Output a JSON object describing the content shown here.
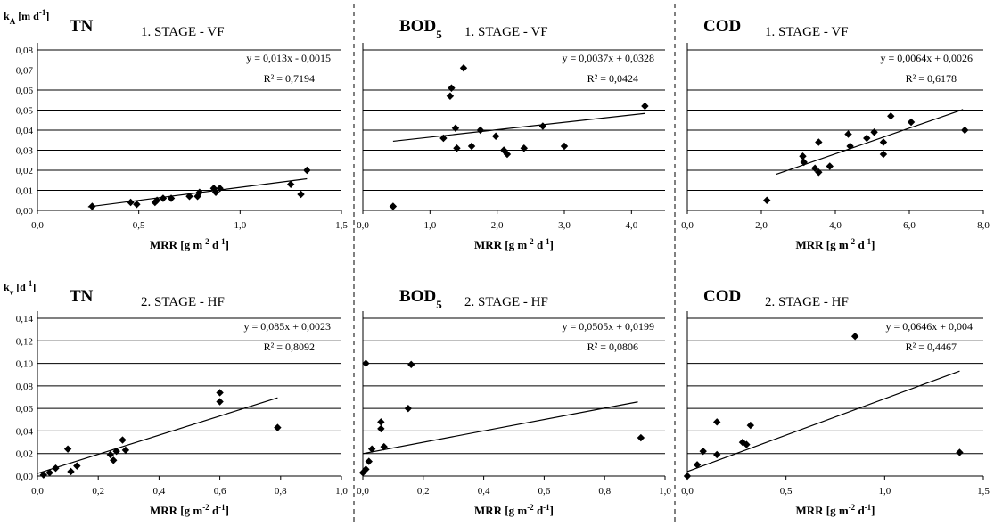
{
  "chart_data": [
    {
      "type": "scatter",
      "param": "TN",
      "param_sub": "",
      "stage": "1. STAGE - VF",
      "ylabel": "k",
      "ylabel_sub": "A",
      "ylabel_unit": " [m d",
      "ylabel_unit_exp": "-1",
      "ylabel_unit_end": "]",
      "xlabel": "MRR [g m",
      "xlabel_exp1": "-2",
      "xlabel_mid": " d",
      "xlabel_exp2": "-1",
      "xlabel_end": "]",
      "xlim": [
        0,
        1.5
      ],
      "ylim": [
        0,
        0.08
      ],
      "xticks": [
        0,
        0.5,
        1,
        1.5
      ],
      "xtick_labels": [
        "0,0",
        "0,5",
        "1,0",
        "1,5"
      ],
      "yticks": [
        0,
        0.01,
        0.02,
        0.03,
        0.04,
        0.05,
        0.06,
        0.07,
        0.08
      ],
      "ytick_labels": [
        "0,00",
        "0,01",
        "0,02",
        "0,03",
        "0,04",
        "0,05",
        "0,06",
        "0,07",
        "0,08"
      ],
      "equation": "y = 0,013x - 0,0015",
      "r2": "R² = 0,7194",
      "trend": {
        "slope": 0.013,
        "intercept": -0.0015,
        "x_from": 0.25,
        "x_to": 1.33
      },
      "points": [
        [
          0.27,
          0.002
        ],
        [
          0.46,
          0.004
        ],
        [
          0.49,
          0.003
        ],
        [
          0.58,
          0.004
        ],
        [
          0.59,
          0.005
        ],
        [
          0.62,
          0.006
        ],
        [
          0.66,
          0.006
        ],
        [
          0.75,
          0.007
        ],
        [
          0.79,
          0.007
        ],
        [
          0.8,
          0.009
        ],
        [
          0.87,
          0.011
        ],
        [
          0.88,
          0.009
        ],
        [
          0.9,
          0.011
        ],
        [
          1.25,
          0.013
        ],
        [
          1.3,
          0.008
        ],
        [
          1.33,
          0.02
        ]
      ]
    },
    {
      "type": "scatter",
      "param": "BOD",
      "param_sub": "5",
      "stage": "1. STAGE - VF",
      "xlabel": "MRR [g m",
      "xlabel_exp1": "-2",
      "xlabel_mid": " d",
      "xlabel_exp2": "-1",
      "xlabel_end": "]",
      "xlim": [
        0,
        4.5
      ],
      "ylim": [
        0,
        0.08
      ],
      "xticks": [
        0,
        1,
        2,
        3,
        4
      ],
      "xtick_labels": [
        "0,0",
        "1,0",
        "2,0",
        "3,0",
        "4,0"
      ],
      "yticks": [
        0,
        0.01,
        0.02,
        0.03,
        0.04,
        0.05,
        0.06,
        0.07,
        0.08
      ],
      "ytick_labels": [],
      "equation": "y = 0,0037x + 0,0328",
      "r2": "R² = 0,0424",
      "trend": {
        "slope": 0.0037,
        "intercept": 0.0328,
        "x_from": 0.45,
        "x_to": 4.2
      },
      "points": [
        [
          0.45,
          0.002
        ],
        [
          1.2,
          0.036
        ],
        [
          1.3,
          0.057
        ],
        [
          1.32,
          0.061
        ],
        [
          1.38,
          0.041
        ],
        [
          1.4,
          0.031
        ],
        [
          1.5,
          0.071
        ],
        [
          1.62,
          0.032
        ],
        [
          1.75,
          0.04
        ],
        [
          1.98,
          0.037
        ],
        [
          2.1,
          0.03
        ],
        [
          2.15,
          0.028
        ],
        [
          2.4,
          0.031
        ],
        [
          2.68,
          0.042
        ],
        [
          3.0,
          0.032
        ],
        [
          4.2,
          0.052
        ]
      ]
    },
    {
      "type": "scatter",
      "param": "COD",
      "param_sub": "",
      "stage": "1. STAGE - VF",
      "xlabel": "MRR [g m",
      "xlabel_exp1": "-2",
      "xlabel_mid": " d",
      "xlabel_exp2": "-1",
      "xlabel_end": "]",
      "xlim": [
        0,
        8
      ],
      "ylim": [
        0,
        0.08
      ],
      "xticks": [
        0,
        2,
        4,
        6,
        8
      ],
      "xtick_labels": [
        "0,0",
        "2,0",
        "4,0",
        "6,0",
        "8,0"
      ],
      "yticks": [
        0,
        0.01,
        0.02,
        0.03,
        0.04,
        0.05,
        0.06,
        0.07,
        0.08
      ],
      "ytick_labels": [],
      "equation": "y = 0,0064x + 0,0026",
      "r2": "R² = 0,6178",
      "trend": {
        "slope": 0.0064,
        "intercept": 0.0026,
        "x_from": 2.4,
        "x_to": 7.45
      },
      "points": [
        [
          2.15,
          0.005
        ],
        [
          3.12,
          0.027
        ],
        [
          3.15,
          0.024
        ],
        [
          3.45,
          0.021
        ],
        [
          3.55,
          0.019
        ],
        [
          3.55,
          0.034
        ],
        [
          3.85,
          0.022
        ],
        [
          4.35,
          0.038
        ],
        [
          4.4,
          0.032
        ],
        [
          4.85,
          0.036
        ],
        [
          5.05,
          0.039
        ],
        [
          5.3,
          0.028
        ],
        [
          5.3,
          0.034
        ],
        [
          5.5,
          0.047
        ],
        [
          6.05,
          0.044
        ],
        [
          7.5,
          0.04
        ]
      ]
    },
    {
      "type": "scatter",
      "param": "TN",
      "param_sub": "",
      "stage": "2. STAGE - HF",
      "ylabel": "k",
      "ylabel_sub": "v",
      "ylabel_unit": " [d",
      "ylabel_unit_exp": "-1",
      "ylabel_unit_end": "]",
      "xlabel": "MRR [g m",
      "xlabel_exp1": "-2",
      "xlabel_mid": " d",
      "xlabel_exp2": "-1",
      "xlabel_end": "]",
      "xlim": [
        0,
        1.0
      ],
      "ylim": [
        0,
        0.14
      ],
      "xticks": [
        0,
        0.2,
        0.4,
        0.6,
        0.8,
        1.0
      ],
      "xtick_labels": [
        "0,0",
        "0,2",
        "0,4",
        "0,6",
        "0,8",
        "1,0"
      ],
      "yticks": [
        0,
        0.02,
        0.04,
        0.06,
        0.08,
        0.1,
        0.12,
        0.14
      ],
      "ytick_labels": [
        "0,00",
        "0,02",
        "0,04",
        "0,06",
        "0,08",
        "0,10",
        "0,12",
        "0,14"
      ],
      "equation": "y = 0,085x + 0,0023",
      "r2": "R² = 0,8092",
      "trend": {
        "slope": 0.085,
        "intercept": 0.0023,
        "x_from": 0.0,
        "x_to": 0.79
      },
      "points": [
        [
          0.02,
          0.001
        ],
        [
          0.04,
          0.003
        ],
        [
          0.06,
          0.007
        ],
        [
          0.1,
          0.024
        ],
        [
          0.11,
          0.004
        ],
        [
          0.13,
          0.009
        ],
        [
          0.24,
          0.019
        ],
        [
          0.25,
          0.014
        ],
        [
          0.26,
          0.022
        ],
        [
          0.28,
          0.032
        ],
        [
          0.29,
          0.023
        ],
        [
          0.6,
          0.074
        ],
        [
          0.6,
          0.066
        ],
        [
          0.79,
          0.043
        ]
      ]
    },
    {
      "type": "scatter",
      "param": "BOD",
      "param_sub": "5",
      "stage": "2. STAGE - HF",
      "xlabel": "MRR [g m",
      "xlabel_exp1": "-2",
      "xlabel_mid": " d",
      "xlabel_exp2": "-1",
      "xlabel_end": "]",
      "xlim": [
        0,
        1.0
      ],
      "ylim": [
        0,
        0.14
      ],
      "xticks": [
        0,
        0.2,
        0.4,
        0.6,
        0.8,
        1.0
      ],
      "xtick_labels": [
        "0,0",
        "0,2",
        "0,4",
        "0,6",
        "0,8",
        "1,0"
      ],
      "yticks": [
        0,
        0.02,
        0.04,
        0.06,
        0.08,
        0.1,
        0.12,
        0.14
      ],
      "ytick_labels": [],
      "equation": "y = 0,0505x + 0,0199",
      "r2": "R² = 0,0806",
      "trend": {
        "slope": 0.0505,
        "intercept": 0.0199,
        "x_from": 0.0,
        "x_to": 0.91
      },
      "points": [
        [
          0.0,
          0.003
        ],
        [
          0.01,
          0.006
        ],
        [
          0.01,
          0.1
        ],
        [
          0.02,
          0.013
        ],
        [
          0.03,
          0.024
        ],
        [
          0.06,
          0.042
        ],
        [
          0.06,
          0.048
        ],
        [
          0.07,
          0.026
        ],
        [
          0.15,
          0.06
        ],
        [
          0.16,
          0.099
        ],
        [
          0.92,
          0.034
        ]
      ]
    },
    {
      "type": "scatter",
      "param": "COD",
      "param_sub": "",
      "stage": "2. STAGE - HF",
      "xlabel": "MRR [g m",
      "xlabel_exp1": "-2",
      "xlabel_mid": " d",
      "xlabel_exp2": "-1",
      "xlabel_end": "]",
      "xlim": [
        0,
        1.5
      ],
      "ylim": [
        0,
        0.14
      ],
      "xticks": [
        0,
        0.5,
        1,
        1.5
      ],
      "xtick_labels": [
        "0,0",
        "0,5",
        "1,0",
        "1,5"
      ],
      "yticks": [
        0,
        0.02,
        0.04,
        0.06,
        0.08,
        0.1,
        0.12,
        0.14
      ],
      "ytick_labels": [],
      "equation": "y = 0,0646x + 0,004",
      "r2": "R² = 0,4467",
      "trend": {
        "slope": 0.0646,
        "intercept": 0.004,
        "x_from": 0.0,
        "x_to": 1.38
      },
      "points": [
        [
          0.0,
          0.0
        ],
        [
          0.05,
          0.01
        ],
        [
          0.08,
          0.022
        ],
        [
          0.15,
          0.048
        ],
        [
          0.15,
          0.019
        ],
        [
          0.28,
          0.03
        ],
        [
          0.3,
          0.028
        ],
        [
          0.32,
          0.045
        ],
        [
          0.85,
          0.124
        ],
        [
          1.38,
          0.021
        ]
      ]
    }
  ]
}
